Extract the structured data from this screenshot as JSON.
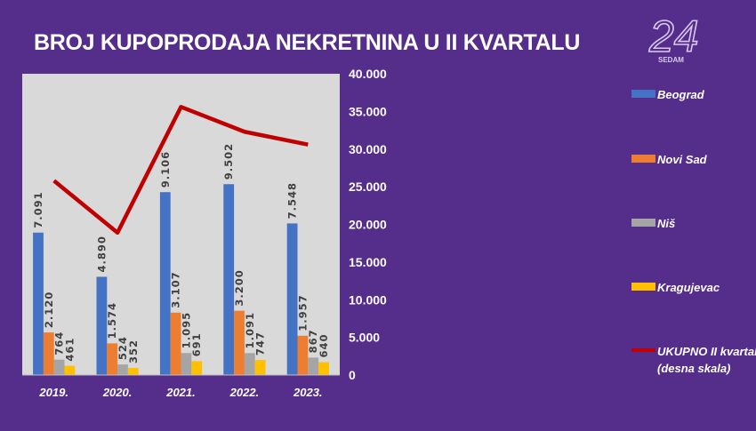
{
  "title": "BROJ KUPOPRODAJA NEKRETNINA U II KVARTALU",
  "logo": {
    "number": "24",
    "text": "SEDAM"
  },
  "chart_data": {
    "type": "bar",
    "title": "BROJ KUPOPRODAJA NEKRETNINA U II KVARTALU",
    "categories": [
      "2019.",
      "2020.",
      "2021.",
      "2022.",
      "2023."
    ],
    "left_ylim": [
      0,
      15000
    ],
    "right_ylim": [
      0,
      40000
    ],
    "right_ticks": [
      "0",
      "5.000",
      "10.000",
      "15.000",
      "20.000",
      "25.000",
      "30.000",
      "35.000",
      "40.000"
    ],
    "legend_position": "right",
    "series": [
      {
        "name": "Beograd",
        "type": "bar",
        "axis": "left",
        "color": "#4472c4",
        "values": [
          7091,
          4890,
          9106,
          9502,
          7548
        ],
        "labels": [
          "7.091",
          "4.890",
          "9.106",
          "9.502",
          "7.548"
        ]
      },
      {
        "name": "Novi Sad",
        "type": "bar",
        "axis": "left",
        "color": "#ed7d31",
        "values": [
          2120,
          1574,
          3107,
          3200,
          1957
        ],
        "labels": [
          "2.120",
          "1.574",
          "3.107",
          "3.200",
          "1.957"
        ]
      },
      {
        "name": "Niš",
        "type": "bar",
        "axis": "left",
        "color": "#a5a5a5",
        "values": [
          764,
          524,
          1095,
          1091,
          867
        ],
        "labels": [
          "764",
          "524",
          "1.095",
          "1.091",
          "867"
        ]
      },
      {
        "name": "Kragujevac",
        "type": "bar",
        "axis": "left",
        "color": "#ffc000",
        "values": [
          461,
          352,
          691,
          747,
          640
        ],
        "labels": [
          "461",
          "352",
          "691",
          "747",
          "640"
        ]
      },
      {
        "name": "UKUPNO II kvartal (desna skala)",
        "type": "line",
        "axis": "right",
        "color": "#c00000",
        "values": [
          25800,
          18900,
          35600,
          32300,
          30600
        ]
      }
    ]
  }
}
